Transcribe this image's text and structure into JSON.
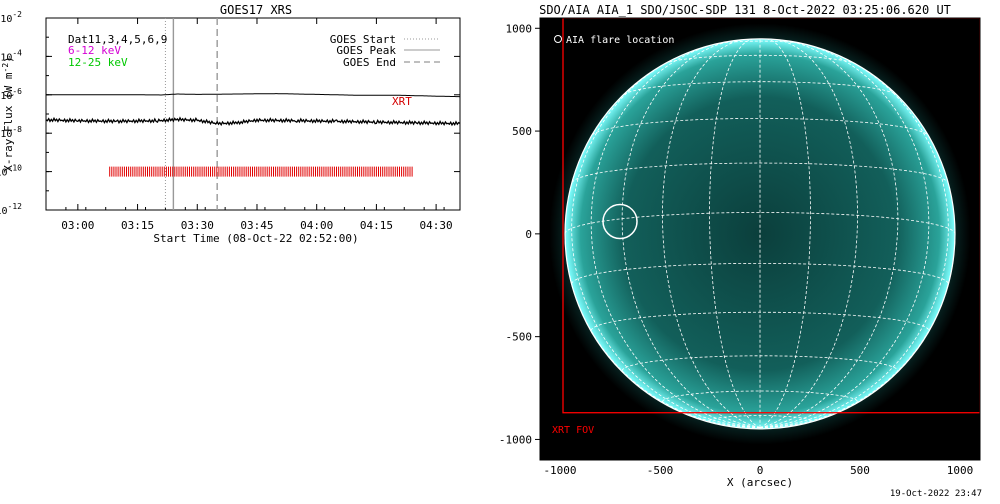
{
  "footer_timestamp": "19-Oct-2022 23:47",
  "chart_data": [
    {
      "type": "line",
      "title": "GOES17 XRS",
      "xlabel": "Start Time (08-Oct-22 02:52:00)",
      "ylabel": "X-ray Flux (W m",
      "ylabel_sup": "-2",
      "ylabel_close": ")",
      "yscale": "log",
      "ylim": [
        1e-12,
        0.01
      ],
      "xlim": [
        "02:52",
        "04:36"
      ],
      "x_tick_labels": [
        "03:00",
        "03:15",
        "03:30",
        "03:45",
        "04:00",
        "04:15",
        "04:30"
      ],
      "y_ticks": [
        {
          "base": "10",
          "exp": "-2",
          "value": 0.01
        },
        {
          "base": "10",
          "exp": "-4",
          "value": 0.0001
        },
        {
          "base": "10",
          "exp": "-6",
          "value": 1e-06
        },
        {
          "base": "10",
          "exp": "-8",
          "value": 1e-08
        },
        {
          "base": "10",
          "exp": "-10",
          "value": 1e-10
        },
        {
          "base": "10",
          "exp": "-12",
          "value": 1e-12
        }
      ],
      "legend_left": [
        {
          "text": "Dat11,3,4,5,6,9",
          "color": "#000000"
        },
        {
          "text": "6-12 keV",
          "color": "#d400d4"
        },
        {
          "text": "12-25 keV",
          "color": "#00c800"
        }
      ],
      "legend_right": [
        {
          "label": "GOES Start",
          "style": "dotted"
        },
        {
          "label": "GOES Peak",
          "style": "solid"
        },
        {
          "label": "GOES End",
          "style": "dashed"
        }
      ],
      "series": [
        {
          "points": [
            [
              "02:52",
              1e-06
            ],
            [
              "03:15",
              1e-06
            ],
            [
              "03:21",
              9.8e-07
            ],
            [
              "03:25",
              1.1e-06
            ],
            [
              "03:30",
              1.05e-06
            ],
            [
              "03:40",
              1.1e-06
            ],
            [
              "03:50",
              1.15e-06
            ],
            [
              "04:00",
              1.05e-06
            ],
            [
              "04:10",
              9.5e-07
            ],
            [
              "04:20",
              9.5e-07
            ],
            [
              "04:30",
              8.5e-07
            ],
            [
              "04:36",
              8e-07
            ]
          ]
        },
        {
          "points": [
            [
              "02:52",
              5e-08
            ],
            [
              "03:00",
              4.5e-08
            ],
            [
              "03:10",
              4.2e-08
            ],
            [
              "03:20",
              4.5e-08
            ],
            [
              "03:25",
              5.2e-08
            ],
            [
              "03:30",
              4.8e-08
            ],
            [
              "03:35",
              3.2e-08
            ],
            [
              "03:40",
              3.5e-08
            ],
            [
              "03:45",
              4.8e-08
            ],
            [
              "03:55",
              4.5e-08
            ],
            [
              "04:05",
              4.2e-08
            ],
            [
              "04:15",
              3.8e-08
            ],
            [
              "04:25",
              3.5e-08
            ],
            [
              "04:36",
              3.2e-08
            ]
          ]
        }
      ],
      "event_lines": {
        "goes_start": "03:22",
        "goes_peak": "03:24",
        "goes_end": "03:35"
      },
      "xrt_label": "XRT",
      "xrt_band": {
        "start": "03:08",
        "end": "04:24",
        "flux": 1e-10
      }
    },
    {
      "type": "scatter",
      "title": "SDO/AIA AIA_1 SDO/JSOC-SDP 131  8-Oct-2022 03:25:06.620 UT",
      "xlabel": "X (arcsec)",
      "xlim": [
        -1100,
        1100
      ],
      "ylim": [
        -1100,
        1050
      ],
      "x_tick_labels": [
        "-1000",
        "-500",
        "0",
        "500",
        "1000"
      ],
      "y_tick_labels": [
        "1000",
        "500",
        "0",
        "-500",
        "-1000"
      ],
      "legend": "AIA flare location",
      "flare_location": {
        "x": -700,
        "y": 60,
        "radius": 85
      },
      "solar_radius": 975,
      "xrt_fov_label": "XRT FOV",
      "xrt_fov": {
        "x0": -985,
        "x1": 1100,
        "y0": -870,
        "y1": 1050
      },
      "colors": {
        "disk": "#0f5a55",
        "limb": "#7fffff",
        "fov": "#ff0000",
        "grid": "#ffffff"
      }
    }
  ]
}
